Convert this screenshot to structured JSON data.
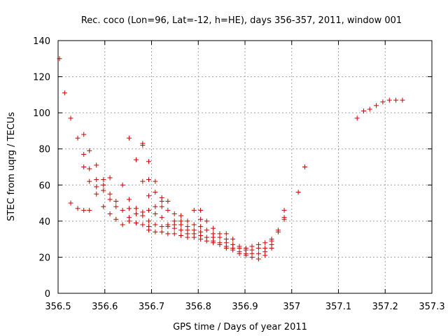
{
  "chart_data": {
    "type": "scatter",
    "title": "Rec. coco (Lon=96, Lat=-12, h=HE), days 356-357, 2011, window 001",
    "xlabel": "GPS time / Days of year 2011",
    "ylabel": "STEC from uqrg / TECUs",
    "xlim": [
      356.5,
      357.3
    ],
    "ylim": [
      0,
      140
    ],
    "x_ticks": [
      356.5,
      356.6,
      356.7,
      356.8,
      356.9,
      357.0,
      357.1,
      357.2,
      357.3
    ],
    "x_tick_labels": [
      "356.5",
      "356.6",
      "356.7",
      "356.8",
      "356.9",
      "357",
      "357.1",
      "357.2",
      "357.3"
    ],
    "y_ticks": [
      0,
      20,
      40,
      60,
      80,
      100,
      120,
      140
    ],
    "y_tick_labels": [
      "0",
      "20",
      "40",
      "60",
      "80",
      "100",
      "120",
      "140"
    ],
    "grid": true,
    "marker": "+",
    "color": "#cc0000",
    "series": [
      {
        "name": "STEC",
        "points": [
          [
            356.503,
            130
          ],
          [
            356.514,
            111
          ],
          [
            356.527,
            97
          ],
          [
            356.527,
            50
          ],
          [
            356.542,
            86
          ],
          [
            356.542,
            47
          ],
          [
            356.555,
            88
          ],
          [
            356.555,
            77
          ],
          [
            356.555,
            70
          ],
          [
            356.555,
            46
          ],
          [
            356.567,
            79
          ],
          [
            356.567,
            69
          ],
          [
            356.567,
            62
          ],
          [
            356.567,
            46
          ],
          [
            356.582,
            71
          ],
          [
            356.582,
            63
          ],
          [
            356.582,
            59
          ],
          [
            356.582,
            55
          ],
          [
            356.597,
            63
          ],
          [
            356.597,
            60
          ],
          [
            356.597,
            57
          ],
          [
            356.597,
            48
          ],
          [
            356.611,
            64
          ],
          [
            356.611,
            55
          ],
          [
            356.611,
            52
          ],
          [
            356.611,
            44
          ],
          [
            356.624,
            51
          ],
          [
            356.624,
            48
          ],
          [
            356.624,
            41
          ],
          [
            356.638,
            60
          ],
          [
            356.638,
            46
          ],
          [
            356.638,
            38
          ],
          [
            356.652,
            86
          ],
          [
            356.652,
            52
          ],
          [
            356.652,
            47
          ],
          [
            356.652,
            42
          ],
          [
            356.652,
            40
          ],
          [
            356.667,
            74
          ],
          [
            356.667,
            47
          ],
          [
            356.667,
            44
          ],
          [
            356.667,
            39
          ],
          [
            356.681,
            83
          ],
          [
            356.681,
            82
          ],
          [
            356.681,
            62
          ],
          [
            356.681,
            45
          ],
          [
            356.681,
            43
          ],
          [
            356.681,
            38
          ],
          [
            356.694,
            73
          ],
          [
            356.694,
            63
          ],
          [
            356.694,
            54
          ],
          [
            356.694,
            46
          ],
          [
            356.694,
            40
          ],
          [
            356.694,
            37
          ],
          [
            356.694,
            35
          ],
          [
            356.708,
            62
          ],
          [
            356.708,
            56
          ],
          [
            356.708,
            48
          ],
          [
            356.708,
            44
          ],
          [
            356.708,
            38
          ],
          [
            356.708,
            34
          ],
          [
            356.722,
            53
          ],
          [
            356.722,
            51
          ],
          [
            356.722,
            48
          ],
          [
            356.722,
            42
          ],
          [
            356.722,
            37
          ],
          [
            356.722,
            34
          ],
          [
            356.735,
            51
          ],
          [
            356.735,
            46
          ],
          [
            356.735,
            38
          ],
          [
            356.735,
            37
          ],
          [
            356.735,
            33
          ],
          [
            356.749,
            44
          ],
          [
            356.749,
            40
          ],
          [
            356.749,
            38
          ],
          [
            356.749,
            36
          ],
          [
            356.749,
            33
          ],
          [
            356.763,
            43
          ],
          [
            356.763,
            40
          ],
          [
            356.763,
            38
          ],
          [
            356.763,
            35
          ],
          [
            356.763,
            32
          ],
          [
            356.777,
            40
          ],
          [
            356.777,
            37
          ],
          [
            356.777,
            35
          ],
          [
            356.777,
            33
          ],
          [
            356.777,
            31
          ],
          [
            356.791,
            46
          ],
          [
            356.791,
            38
          ],
          [
            356.791,
            35
          ],
          [
            356.791,
            33
          ],
          [
            356.791,
            31
          ],
          [
            356.805,
            46
          ],
          [
            356.805,
            41
          ],
          [
            356.805,
            37
          ],
          [
            356.805,
            34
          ],
          [
            356.805,
            32
          ],
          [
            356.805,
            30
          ],
          [
            356.818,
            40
          ],
          [
            356.818,
            35
          ],
          [
            356.818,
            31
          ],
          [
            356.818,
            29
          ],
          [
            356.832,
            36
          ],
          [
            356.832,
            33
          ],
          [
            356.832,
            31
          ],
          [
            356.832,
            29
          ],
          [
            356.832,
            28
          ],
          [
            356.846,
            33
          ],
          [
            356.846,
            31
          ],
          [
            356.846,
            28
          ],
          [
            356.846,
            27
          ],
          [
            356.86,
            33
          ],
          [
            356.86,
            30
          ],
          [
            356.86,
            28
          ],
          [
            356.86,
            26
          ],
          [
            356.86,
            25
          ],
          [
            356.874,
            30
          ],
          [
            356.874,
            27
          ],
          [
            356.874,
            25
          ],
          [
            356.874,
            24
          ],
          [
            356.888,
            26
          ],
          [
            356.888,
            25
          ],
          [
            356.888,
            23
          ],
          [
            356.888,
            22
          ],
          [
            356.902,
            25
          ],
          [
            356.902,
            24
          ],
          [
            356.902,
            22
          ],
          [
            356.902,
            21
          ],
          [
            356.915,
            26
          ],
          [
            356.915,
            24
          ],
          [
            356.915,
            22
          ],
          [
            356.915,
            20
          ],
          [
            356.929,
            27
          ],
          [
            356.929,
            25
          ],
          [
            356.929,
            22
          ],
          [
            356.929,
            19
          ],
          [
            356.943,
            28
          ],
          [
            356.943,
            25
          ],
          [
            356.943,
            23
          ],
          [
            356.943,
            21
          ],
          [
            356.957,
            30
          ],
          [
            356.957,
            29
          ],
          [
            356.957,
            27
          ],
          [
            356.957,
            25
          ],
          [
            356.971,
            35
          ],
          [
            356.971,
            34
          ],
          [
            356.984,
            46
          ],
          [
            356.984,
            42
          ],
          [
            356.984,
            41
          ],
          [
            357.014,
            56
          ],
          [
            357.028,
            70
          ],
          [
            357.14,
            97
          ],
          [
            357.154,
            101
          ],
          [
            357.167,
            102
          ],
          [
            357.181,
            104
          ],
          [
            357.195,
            106
          ],
          [
            357.209,
            107
          ],
          [
            357.223,
            107
          ],
          [
            357.237,
            107
          ]
        ]
      }
    ]
  }
}
